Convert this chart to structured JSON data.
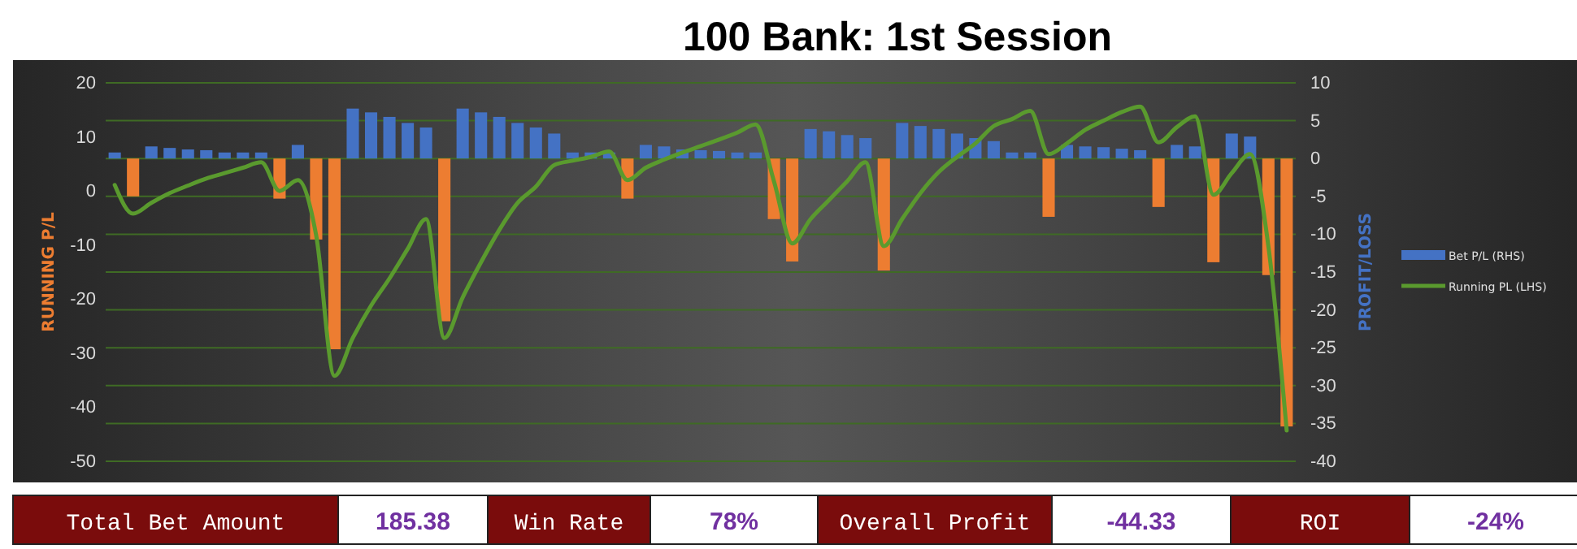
{
  "chart_data": {
    "type": "bar",
    "title": "100 Bank: 1st Session",
    "ylabel": "RUNNING P/L",
    "y2label": "PROFIT/LOSS",
    "categories": [
      null,
      null,
      null,
      null,
      null,
      null,
      null,
      null,
      null,
      null,
      null,
      null,
      null,
      null,
      null,
      null,
      null,
      null,
      null,
      null,
      null,
      null,
      null,
      null,
      null,
      null,
      null,
      null,
      null,
      null,
      null,
      null,
      null,
      null,
      null,
      null,
      null,
      null,
      null,
      null,
      null,
      null,
      null,
      null,
      null,
      null,
      null,
      null,
      null,
      null,
      null,
      null,
      null,
      null,
      null,
      null,
      null,
      null,
      null,
      null,
      null,
      null,
      null,
      null,
      null
    ],
    "series": [
      {
        "name": "Bet P/L (RHS)",
        "axis": "y2",
        "color": "#4472c4",
        "colors": [
          "#4472c4",
          "#ed7d31",
          "#4472c4",
          "#4472c4",
          "#4472c4",
          "#4472c4",
          "#4472c4",
          "#4472c4",
          "#4472c4",
          "#ed7d31",
          "#4472c4",
          "#ed7d31",
          "#ed7d31",
          "#4472c4",
          "#4472c4",
          "#4472c4",
          "#4472c4",
          "#4472c4",
          "#ed7d31",
          "#4472c4",
          "#4472c4",
          "#4472c4",
          "#4472c4",
          "#4472c4",
          "#4472c4",
          "#4472c4",
          "#4472c4",
          "#4472c4",
          "#ed7d31",
          "#4472c4",
          "#4472c4",
          "#4472c4",
          "#4472c4",
          "#4472c4",
          "#4472c4",
          "#4472c4",
          "#ed7d31",
          "#ed7d31",
          "#4472c4",
          "#4472c4",
          "#4472c4",
          "#4472c4",
          "#ed7d31",
          "#4472c4",
          "#4472c4",
          "#4472c4",
          "#4472c4",
          "#4472c4",
          "#4472c4",
          "#4472c4",
          "#4472c4",
          "#ed7d31",
          "#4472c4",
          "#4472c4",
          "#4472c4",
          "#4472c4",
          "#4472c4",
          "#ed7d31",
          "#4472c4",
          "#4472c4",
          "#ed7d31",
          "#4472c4",
          "#4472c4",
          "#ed7d31",
          "#ed7d31"
        ],
        "values": [
          0.8,
          -5,
          1.6,
          1.4,
          1.2,
          1.1,
          0.8,
          0.8,
          0.8,
          -5.3,
          1.8,
          -10.7,
          -25.2,
          6.6,
          6.1,
          5.5,
          4.7,
          4.1,
          -21.5,
          6.6,
          6.1,
          5.5,
          4.7,
          4.1,
          3.3,
          0.8,
          0.8,
          0.8,
          -5.3,
          1.8,
          1.6,
          1.2,
          1.1,
          1,
          0.8,
          0.8,
          -8,
          -13.6,
          3.9,
          3.6,
          3.1,
          2.7,
          -14.8,
          4.7,
          4.3,
          3.9,
          3.3,
          2.7,
          2.3,
          0.8,
          0.8,
          -7.7,
          1.8,
          1.6,
          1.5,
          1.3,
          1.1,
          -6.4,
          1.8,
          1.6,
          -13.7,
          3.3,
          2.9,
          -15.4,
          -35.4
        ]
      },
      {
        "name": "Running PL (LHS)",
        "type": "line",
        "color": "#5a9a2e",
        "values": [
          1.1,
          -4.2,
          -2.2,
          -0.4,
          1,
          2.3,
          3.3,
          4.3,
          5.3,
          0,
          2,
          -8.2,
          -34.2,
          -27.2,
          -21.2,
          -16.2,
          -10.7,
          -5.2,
          -27.2,
          -19.7,
          -13.2,
          -7.2,
          -2.2,
          0.8,
          4.8,
          5.6,
          6.3,
          7.3,
          2,
          4.3,
          5.8,
          7.1,
          8.3,
          9.5,
          10.8,
          12.3,
          1.8,
          -9.7,
          -5.2,
          -1.7,
          1.8,
          5.3,
          -10.2,
          -5.2,
          -0.4,
          3.5,
          6.3,
          8.8,
          12,
          13.3,
          14.8,
          6.8,
          8.8,
          11.3,
          13,
          14.6,
          15.6,
          9,
          11.8,
          13.8,
          -0.7,
          3.3,
          6.8,
          -10.2,
          -44.3
        ]
      }
    ],
    "ylim": [
      -50,
      20
    ],
    "yticks": [
      -50,
      -40,
      -30,
      -20,
      -10,
      0,
      10,
      20
    ],
    "y2lim": [
      -40,
      10
    ],
    "y2ticks": [
      -40,
      -35,
      -30,
      -25,
      -20,
      -15,
      -10,
      -5,
      0,
      5,
      10
    ],
    "grid": "y2",
    "legend": "right",
    "line_style": "solid",
    "marker": "none",
    "annotations": [
      "Total Bet Amount",
      "185.38",
      "Win Rate",
      "78%",
      "Overall Profit",
      "-44.33",
      "ROI",
      "-24%"
    ]
  }
}
